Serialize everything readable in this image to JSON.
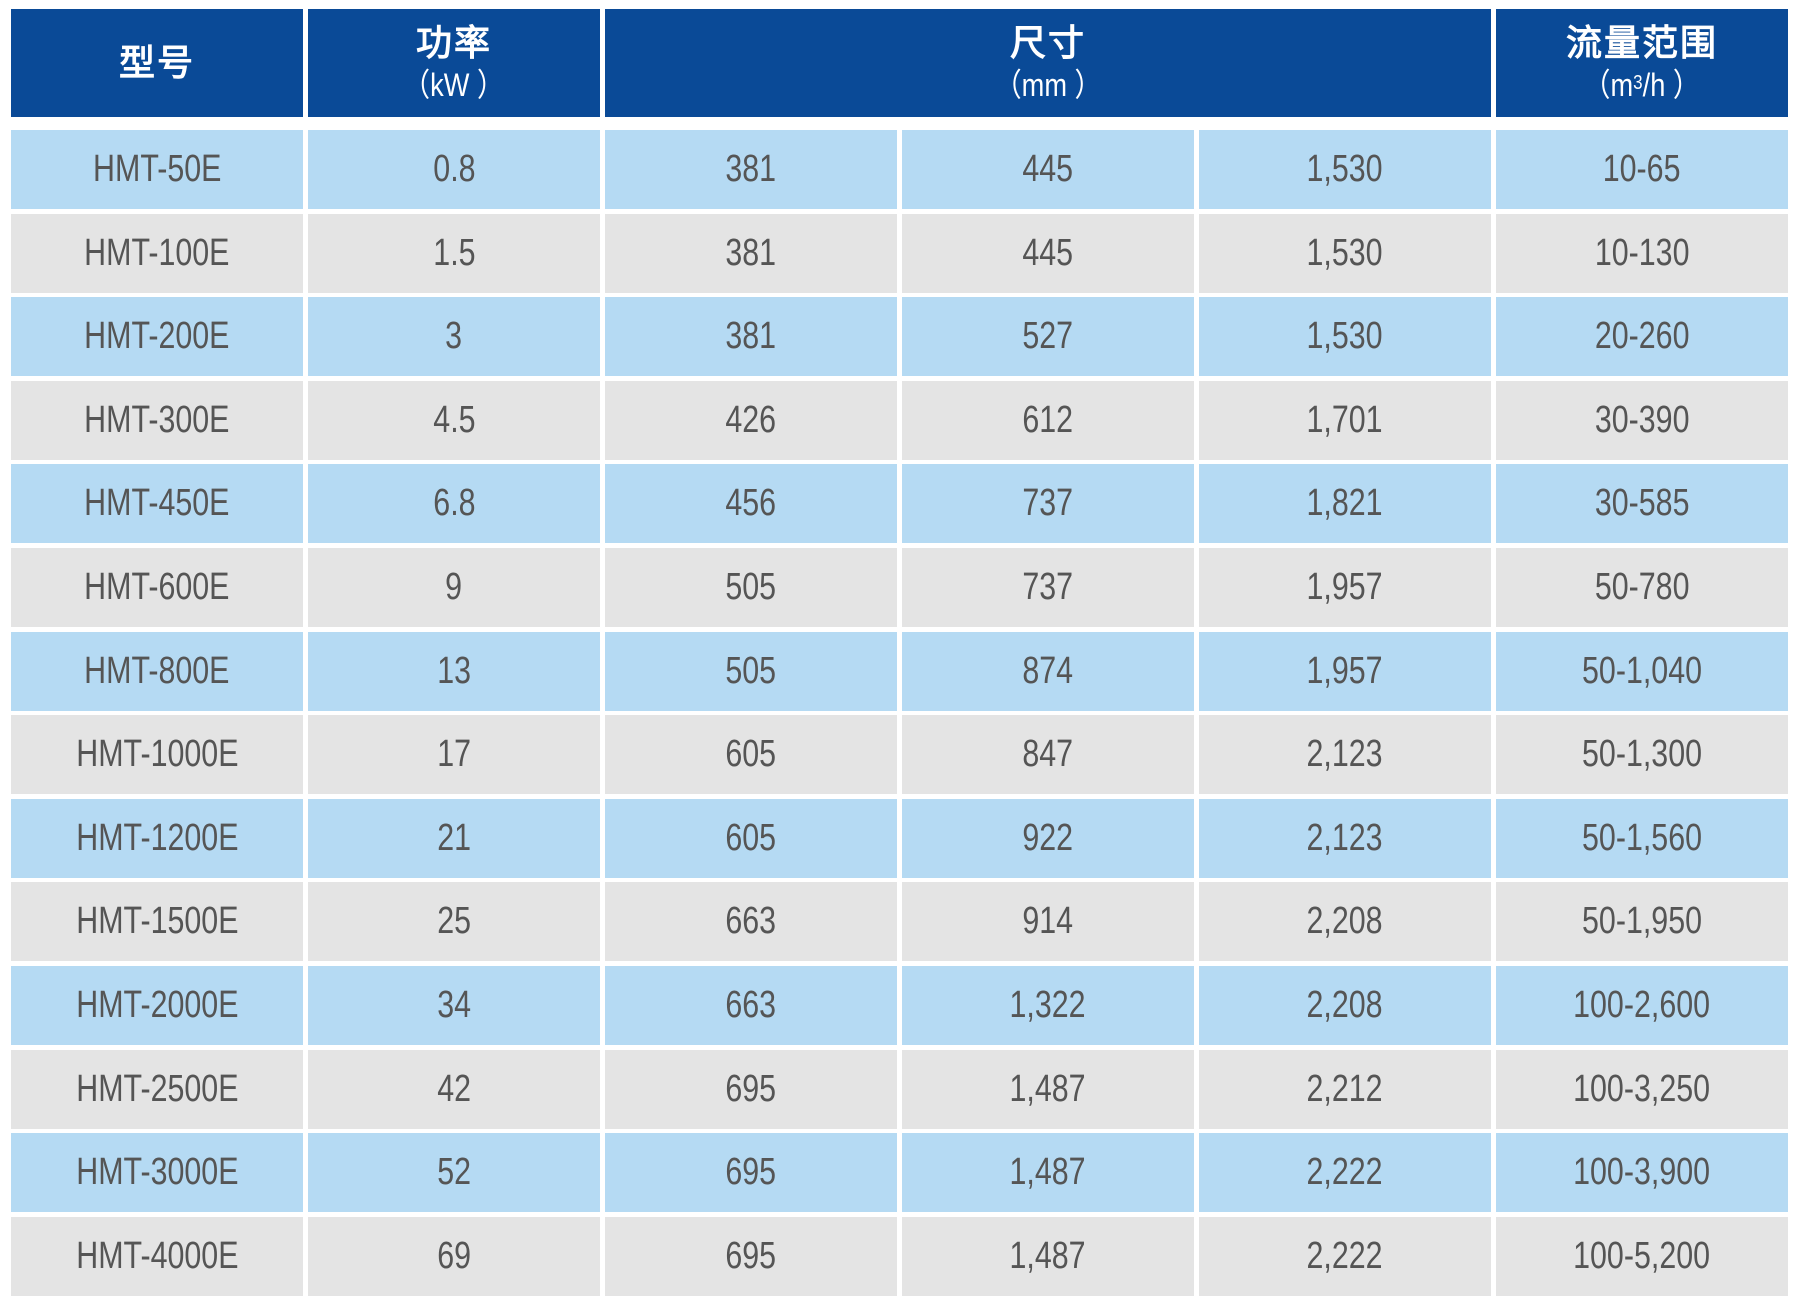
{
  "header": {
    "model": {
      "title": "型号"
    },
    "power": {
      "title": "功率",
      "unit": "（kW ）"
    },
    "dimensions": {
      "title": "尺寸",
      "unit": "（mm ）"
    },
    "flow": {
      "title": "流量范围",
      "unit_pre": "（m",
      "unit_sup": "3",
      "unit_post": "/h ）"
    }
  },
  "colors": {
    "header": "#0a4a97",
    "row_blue": "#b5daf3",
    "row_gray": "#e4e4e4",
    "text": "#555555"
  },
  "rows": [
    [
      "HMT-50E",
      "0.8",
      "381",
      "445",
      "1,530",
      "10-65"
    ],
    [
      "HMT-100E",
      "1.5",
      "381",
      "445",
      "1,530",
      "10-130"
    ],
    [
      "HMT-200E",
      "3",
      "381",
      "527",
      "1,530",
      "20-260"
    ],
    [
      "HMT-300E",
      "4.5",
      "426",
      "612",
      "1,701",
      "30-390"
    ],
    [
      "HMT-450E",
      "6.8",
      "456",
      "737",
      "1,821",
      "30-585"
    ],
    [
      "HMT-600E",
      "9",
      "505",
      "737",
      "1,957",
      "50-780"
    ],
    [
      "HMT-800E",
      "13",
      "505",
      "874",
      "1,957",
      "50-1,040"
    ],
    [
      "HMT-1000E",
      "17",
      "605",
      "847",
      "2,123",
      "50-1,300"
    ],
    [
      "HMT-1200E",
      "21",
      "605",
      "922",
      "2,123",
      "50-1,560"
    ],
    [
      "HMT-1500E",
      "25",
      "663",
      "914",
      "2,208",
      "50-1,950"
    ],
    [
      "HMT-2000E",
      "34",
      "663",
      "1,322",
      "2,208",
      "100-2,600"
    ],
    [
      "HMT-2500E",
      "42",
      "695",
      "1,487",
      "2,212",
      "100-3,250"
    ],
    [
      "HMT-3000E",
      "52",
      "695",
      "1,487",
      "2,222",
      "100-3,900"
    ],
    [
      "HMT-4000E",
      "69",
      "695",
      "1,487",
      "2,222",
      "100-5,200"
    ]
  ]
}
